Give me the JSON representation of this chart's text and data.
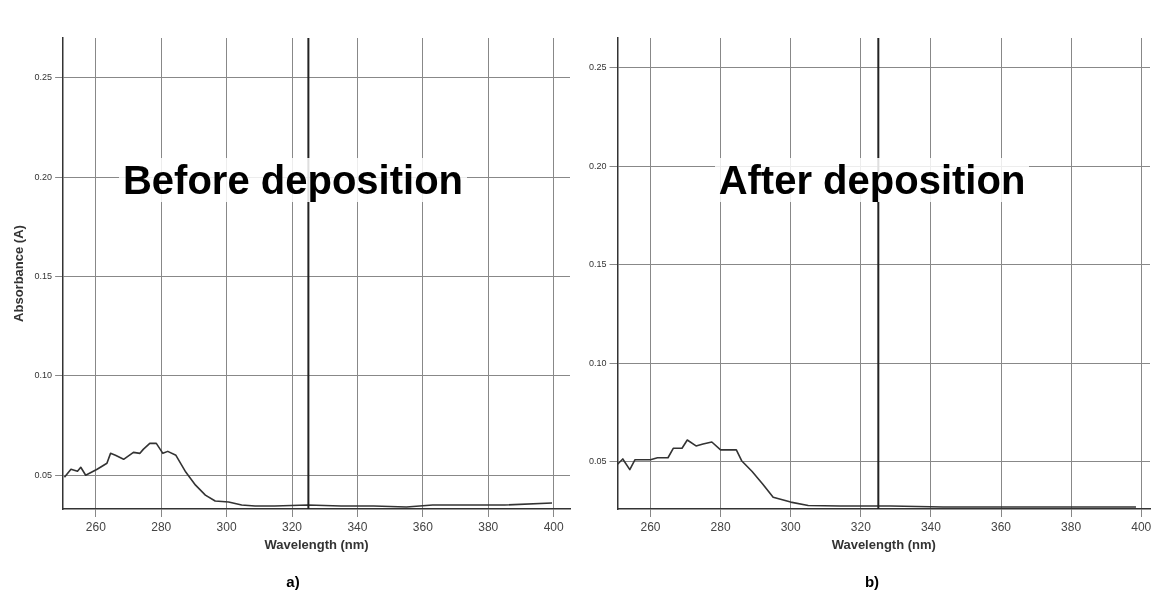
{
  "chart_data": [
    {
      "type": "line",
      "xlabel": "Wavelength (nm)",
      "ylabel": "Absorbance (A)",
      "annotations": [
        "Before deposition",
        "a)"
      ],
      "xlim": [
        250,
        405
      ],
      "xticks": [
        260,
        280,
        300,
        320,
        340,
        360,
        380,
        400
      ],
      "ylim": [
        0.033,
        0.27
      ],
      "yticks": [
        {
          "value": 0.05,
          "label": "0.05"
        },
        {
          "value": 0.1,
          "label": "0.10"
        },
        {
          "value": 0.15,
          "label": "0.15"
        },
        {
          "value": 0.2,
          "label": "0.20"
        },
        {
          "value": 0.25,
          "label": "0.25"
        }
      ],
      "grid": true,
      "legend": false,
      "marker": "none",
      "line_style": "solid",
      "ref_lines": [
        {
          "axis": "x",
          "value": 325,
          "color": "#222222"
        }
      ],
      "series": [
        {
          "color": "#333333",
          "x": [
            250.4,
            252.4,
            254.4,
            255.4,
            256.9,
            260.4,
            263.4,
            264.5,
            266,
            268.5,
            271.5,
            273.5,
            274.5,
            276.5,
            278.5,
            280.5,
            282,
            284.5,
            287.5,
            290.5,
            293.5,
            296.5,
            300.6,
            304.6,
            308.7,
            314.7,
            324.8,
            335,
            345,
            355,
            363,
            375,
            385,
            399.5
          ],
          "values": [
            0.049,
            0.053,
            0.052,
            0.054,
            0.05,
            0.053,
            0.056,
            0.061,
            0.06,
            0.058,
            0.0615,
            0.061,
            0.063,
            0.066,
            0.066,
            0.061,
            0.062,
            0.06,
            0.0516,
            0.045,
            0.04,
            0.037,
            0.0365,
            0.035,
            0.0345,
            0.0345,
            0.035,
            0.0345,
            0.0345,
            0.034,
            0.035,
            0.035,
            0.035,
            0.036
          ]
        }
      ]
    },
    {
      "type": "line",
      "xlabel": "Wavelength (nm)",
      "annotations": [
        "After deposition",
        "b)"
      ],
      "xlim": [
        250.6,
        402.5
      ],
      "xticks": [
        260,
        280,
        300,
        320,
        340,
        360,
        380,
        400
      ],
      "ylim": [
        0.026,
        0.265
      ],
      "yticks": [
        {
          "value": 0.05,
          "label": "0.05"
        },
        {
          "value": 0.1,
          "label": "0.10"
        },
        {
          "value": 0.15,
          "label": "0.15"
        },
        {
          "value": 0.2,
          "label": "0.20"
        },
        {
          "value": 0.25,
          "label": "0.25"
        }
      ],
      "grid": true,
      "legend": false,
      "marker": "none",
      "line_style": "solid",
      "ref_lines": [
        {
          "axis": "x",
          "value": 325,
          "color": "#222222"
        }
      ],
      "series": [
        {
          "color": "#333333",
          "x": [
            250.6,
            252.1,
            254.1,
            255.6,
            260,
            262,
            265,
            266.5,
            269,
            270.5,
            273,
            275,
            277.5,
            280,
            284.5,
            286,
            289,
            292,
            295,
            300,
            305,
            314,
            328.5,
            343.5,
            363,
            383,
            398.5
          ],
          "values": [
            0.0487,
            0.0514,
            0.046,
            0.051,
            0.051,
            0.052,
            0.052,
            0.0568,
            0.0568,
            0.061,
            0.058,
            0.059,
            0.06,
            0.056,
            0.056,
            0.0505,
            0.045,
            0.0387,
            0.032,
            0.0295,
            0.0278,
            0.0275,
            0.0275,
            0.027,
            0.027,
            0.027,
            0.027
          ]
        }
      ]
    }
  ]
}
